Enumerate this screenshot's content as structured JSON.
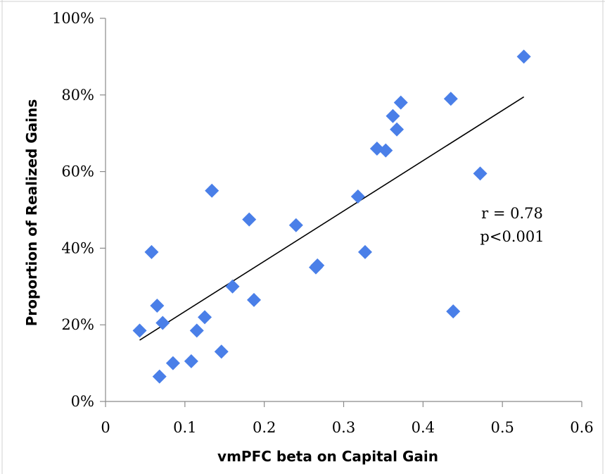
{
  "chart_data": {
    "type": "scatter",
    "title": "",
    "xlabel": "vmPFC beta on Capital Gain",
    "ylabel": "Proportion of Realized Gains",
    "xlim": [
      0,
      0.6
    ],
    "ylim": [
      0,
      1
    ],
    "x_ticks": [
      0,
      0.1,
      0.2,
      0.3,
      0.4,
      0.5,
      0.6
    ],
    "x_tick_labels": [
      "0",
      "0.1",
      "0.2",
      "0.3",
      "0.4",
      "0.5",
      "0.6"
    ],
    "y_ticks": [
      0,
      0.2,
      0.4,
      0.6,
      0.8,
      1.0
    ],
    "y_tick_labels": [
      "0%",
      "20%",
      "40%",
      "60%",
      "80%",
      "100%"
    ],
    "grid": false,
    "legend": "none",
    "marker": "diamond",
    "marker_color": "#4a7fe8",
    "trendline_color": "#000000",
    "series": [
      {
        "points": [
          {
            "x": 0.043,
            "y": 0.185
          },
          {
            "x": 0.058,
            "y": 0.39
          },
          {
            "x": 0.065,
            "y": 0.25
          },
          {
            "x": 0.068,
            "y": 0.065
          },
          {
            "x": 0.072,
            "y": 0.205
          },
          {
            "x": 0.085,
            "y": 0.1
          },
          {
            "x": 0.108,
            "y": 0.105
          },
          {
            "x": 0.115,
            "y": 0.185
          },
          {
            "x": 0.125,
            "y": 0.22
          },
          {
            "x": 0.134,
            "y": 0.55
          },
          {
            "x": 0.146,
            "y": 0.13
          },
          {
            "x": 0.16,
            "y": 0.3
          },
          {
            "x": 0.181,
            "y": 0.475
          },
          {
            "x": 0.187,
            "y": 0.265
          },
          {
            "x": 0.24,
            "y": 0.46
          },
          {
            "x": 0.265,
            "y": 0.35
          },
          {
            "x": 0.267,
            "y": 0.355
          },
          {
            "x": 0.318,
            "y": 0.535
          },
          {
            "x": 0.327,
            "y": 0.39
          },
          {
            "x": 0.342,
            "y": 0.66
          },
          {
            "x": 0.353,
            "y": 0.655
          },
          {
            "x": 0.362,
            "y": 0.745
          },
          {
            "x": 0.367,
            "y": 0.71
          },
          {
            "x": 0.372,
            "y": 0.78
          },
          {
            "x": 0.435,
            "y": 0.79
          },
          {
            "x": 0.438,
            "y": 0.235
          },
          {
            "x": 0.472,
            "y": 0.595
          },
          {
            "x": 0.527,
            "y": 0.9
          }
        ]
      }
    ],
    "trendline": {
      "x": [
        0.043,
        0.527
      ],
      "y": [
        0.16,
        0.795
      ]
    },
    "annotations": [
      "r = 0.78",
      "p<0.001"
    ]
  }
}
